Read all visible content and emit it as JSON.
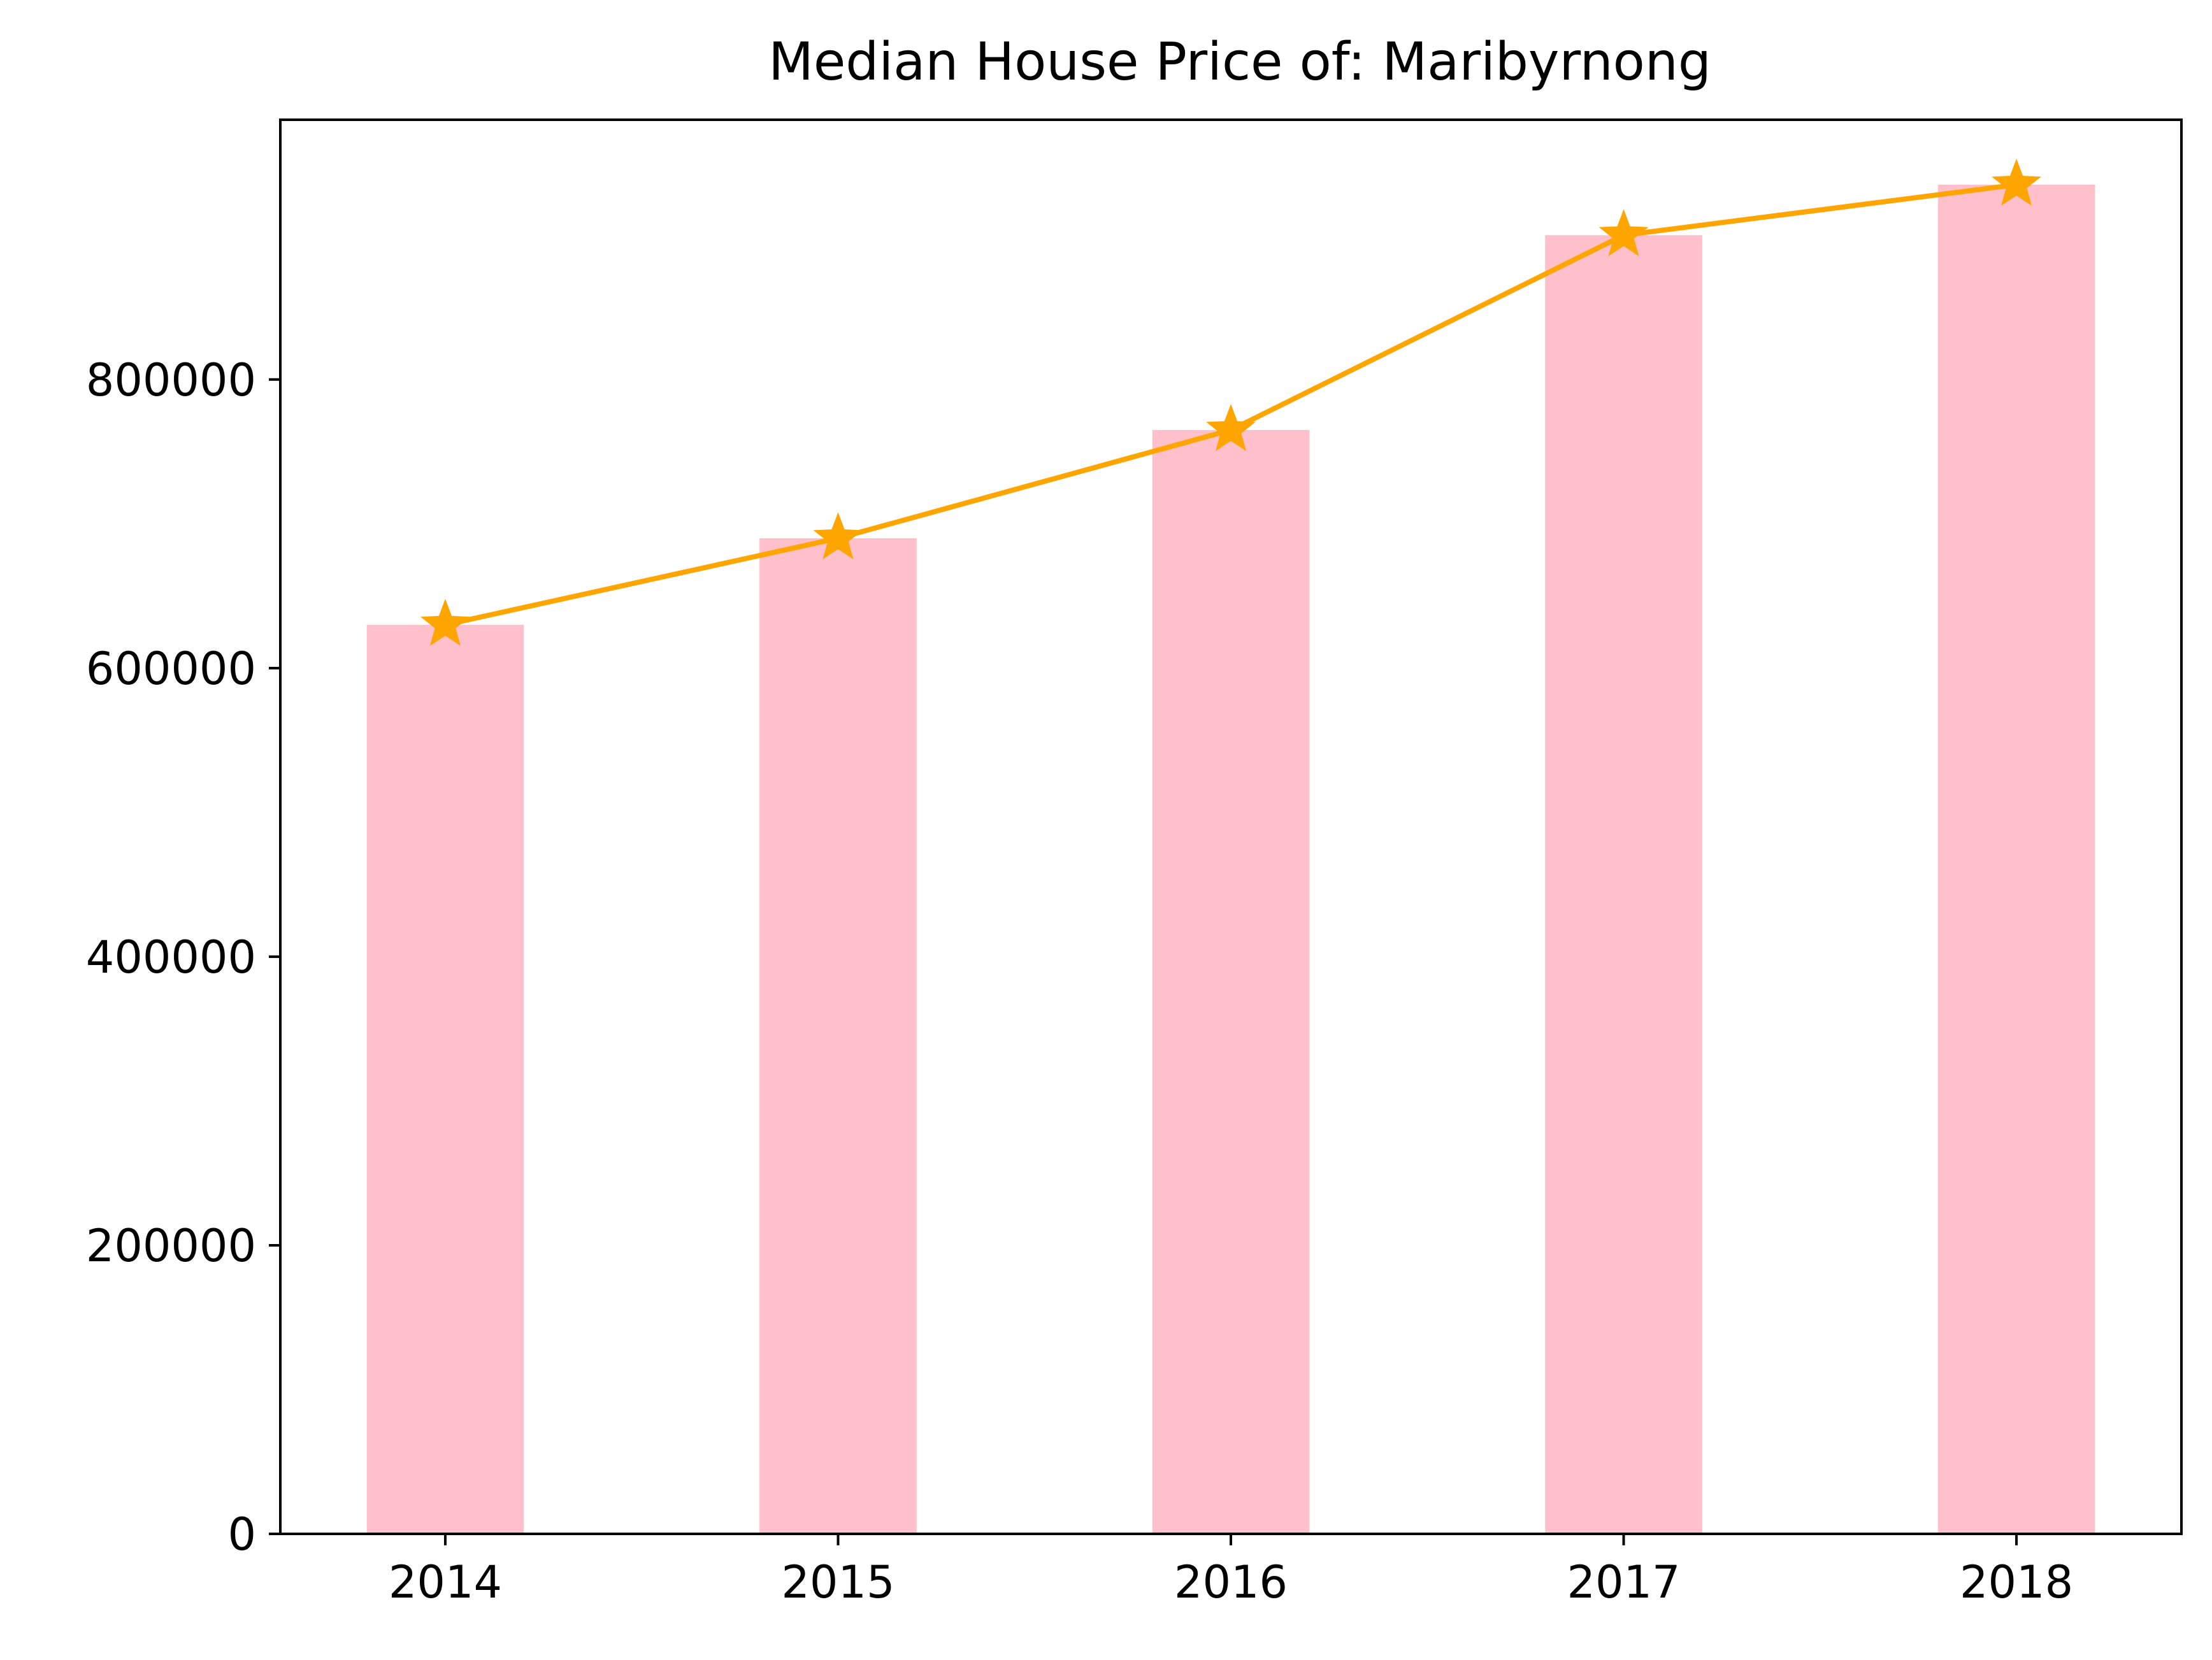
{
  "chart_data": {
    "type": "bar",
    "title": "Median House Price of: Maribyrnong",
    "xlabel": "",
    "ylabel": "",
    "categories": [
      "2014",
      "2015",
      "2016",
      "2017",
      "2018"
    ],
    "series": [
      {
        "type": "bar",
        "values": [
          630000,
          690000,
          765000,
          900000,
          935000
        ],
        "color": "#ffc0cb"
      },
      {
        "type": "line",
        "marker": "star",
        "values": [
          630000,
          690000,
          765000,
          900000,
          935000
        ],
        "color": "#ffa500"
      }
    ],
    "ylim": [
      0,
      980000
    ],
    "yticks": [
      0,
      200000,
      400000,
      600000,
      800000
    ],
    "ytick_labels": [
      "0",
      "200000",
      "400000",
      "600000",
      "800000"
    ],
    "grid": false,
    "legend": "none"
  }
}
